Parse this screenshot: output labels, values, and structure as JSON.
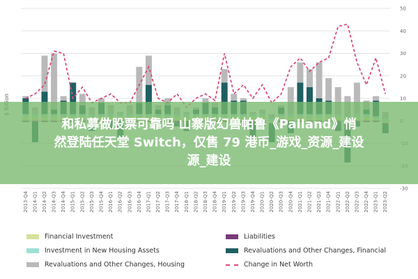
{
  "overlay": {
    "line1": "和私募做股票可靠吗 山寨版幻兽帕鲁《Palland》悄",
    "line2": "然登陆任天堂 Switch，仅售 79 港币_游戏_资源_建设",
    "line3": "源_建设"
  },
  "chart_data": {
    "type": "bar",
    "stacked": true,
    "ylabel": "$ Billion",
    "ylim": [
      -30,
      50
    ],
    "yticks": [
      50,
      40,
      30,
      20,
      10,
      0,
      -10,
      -20,
      -30
    ],
    "grid": true,
    "legend_position": "bottom",
    "categories": [
      "2013-Q4",
      "2014-Q1",
      "2014-Q2",
      "2014-Q3",
      "2014-Q4",
      "2015-Q1",
      "2015-Q2",
      "2015-Q3",
      "2015-Q4",
      "2016-Q1",
      "2016-Q2",
      "2016-Q3",
      "2016-Q4",
      "2017-Q1",
      "2017-Q2",
      "2017-Q3",
      "2017-Q4",
      "2018-Q1",
      "2018-Q2",
      "2018-Q3",
      "2018-Q4",
      "2019-Q1",
      "2019-Q2",
      "2019-Q3",
      "2019-Q4",
      "2020-Q1",
      "2020-Q2",
      "2020-Q3",
      "2020-Q4",
      "2021-Q1",
      "2021-Q2",
      "2021-Q3",
      "2021-Q4",
      "2022-Q1",
      "2022-Q2",
      "2022-Q3",
      "2022-Q4",
      "2023-Q1",
      "2023-Q2"
    ],
    "series": [
      {
        "name": "Financial Investment",
        "color": "#d6e29a",
        "values": [
          2,
          2,
          2,
          2,
          2,
          2,
          2,
          2,
          2,
          2,
          2,
          2,
          2,
          2,
          2,
          2,
          2,
          2,
          2,
          2,
          2,
          2,
          2,
          2,
          2,
          2,
          -1,
          2,
          2,
          2,
          2,
          2,
          2,
          2,
          -1,
          2,
          2,
          1,
          -1
        ]
      },
      {
        "name": "Liabilities",
        "color": "#7a3a78",
        "values": [
          -0.5,
          -0.5,
          -0.5,
          -0.5,
          -0.5,
          -0.5,
          -0.5,
          -0.5,
          -0.5,
          -0.5,
          -0.5,
          -0.5,
          -0.5,
          -0.5,
          -0.5,
          -0.5,
          -0.5,
          -0.5,
          -0.5,
          -0.5,
          -0.5,
          -0.5,
          -0.5,
          -0.5,
          -0.5,
          -0.5,
          -0.5,
          -0.5,
          -0.5,
          -0.5,
          -0.5,
          -0.5,
          -0.5,
          -0.5,
          -0.5,
          -0.5,
          -0.5,
          -0.5,
          -0.5
        ]
      },
      {
        "name": "Investment in New Housing Assets",
        "color": "#9ee0d4",
        "values": [
          1,
          1,
          1,
          1,
          1,
          1,
          1,
          1,
          1,
          1,
          1,
          1,
          1,
          1,
          1,
          1,
          1,
          1,
          1,
          1,
          1,
          1,
          1,
          1,
          1,
          1,
          1,
          1,
          1,
          1,
          1,
          1,
          1,
          1,
          1,
          1,
          1,
          1,
          1
        ]
      },
      {
        "name": "Revaluations and Other Changes, Financial",
        "color": "#1f5f62",
        "values": [
          7,
          -9,
          10,
          2,
          6,
          14,
          4,
          -4,
          5,
          -3,
          -7,
          -2,
          5,
          13,
          2,
          4,
          -2,
          -4,
          2,
          5,
          3,
          14,
          6,
          6,
          -8,
          -2,
          -8,
          3,
          -5,
          14,
          12,
          7,
          6,
          -4,
          -17,
          -2,
          2,
          7,
          -4
        ]
      },
      {
        "name": "Revaluations and Other Changes, Housing",
        "color": "#b9b9b9",
        "values": [
          1,
          3,
          16,
          25,
          2,
          0,
          5,
          3,
          2,
          4,
          1,
          4,
          16,
          13,
          2,
          3,
          3,
          1,
          1,
          2,
          2,
          6,
          3,
          1,
          1,
          2,
          2,
          1,
          12,
          9,
          8,
          16,
          10,
          12,
          10,
          14,
          4,
          2,
          3
        ]
      },
      {
        "name": "Change in Net Worth",
        "color": "#d84a7e",
        "type": "line",
        "values": [
          10,
          12,
          16,
          31,
          30,
          10,
          15,
          8,
          10,
          12,
          8,
          8,
          16,
          24,
          10,
          8,
          12,
          6,
          10,
          12,
          9,
          30,
          12,
          16,
          10,
          16,
          8,
          12,
          24,
          28,
          22,
          26,
          28,
          42,
          43,
          26,
          16,
          28,
          12
        ]
      }
    ]
  }
}
